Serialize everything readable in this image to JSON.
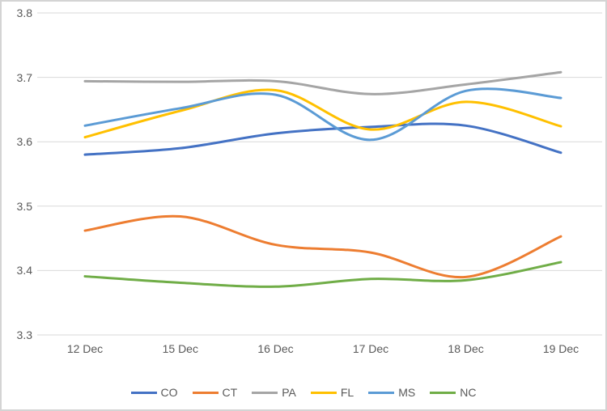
{
  "chart_data": {
    "type": "line",
    "title": "",
    "xlabel": "",
    "ylabel": "",
    "categories": [
      "12 Dec",
      "15 Dec",
      "16 Dec",
      "17 Dec",
      "18 Dec",
      "19 Dec"
    ],
    "series": [
      {
        "name": "CO",
        "color": "#4472C4",
        "values": [
          3.58,
          3.59,
          3.613,
          3.623,
          3.625,
          3.583
        ]
      },
      {
        "name": "CT",
        "color": "#ED7D31",
        "values": [
          3.462,
          3.484,
          3.44,
          3.428,
          3.39,
          3.453
        ]
      },
      {
        "name": "PA",
        "color": "#A5A5A5",
        "values": [
          3.694,
          3.693,
          3.694,
          3.674,
          3.689,
          3.708
        ]
      },
      {
        "name": "FL",
        "color": "#FFC000",
        "values": [
          3.607,
          3.648,
          3.68,
          3.619,
          3.662,
          3.624
        ]
      },
      {
        "name": "MS",
        "color": "#5B9BD5",
        "values": [
          3.625,
          3.652,
          3.673,
          3.603,
          3.679,
          3.668
        ]
      },
      {
        "name": "NC",
        "color": "#70AD47",
        "values": [
          3.391,
          3.381,
          3.375,
          3.387,
          3.385,
          3.413
        ]
      }
    ],
    "y_ticks": [
      "3.8",
      "3.7",
      "3.6",
      "3.5",
      "3.4",
      "3.3"
    ],
    "ylim": [
      3.3,
      3.8
    ],
    "grid": true,
    "line_smoothing": true,
    "legend_position": "bottom",
    "gridline_color": "#D9D9D9",
    "axis_text_color": "#595959",
    "background_color": "#FFFFFF"
  }
}
